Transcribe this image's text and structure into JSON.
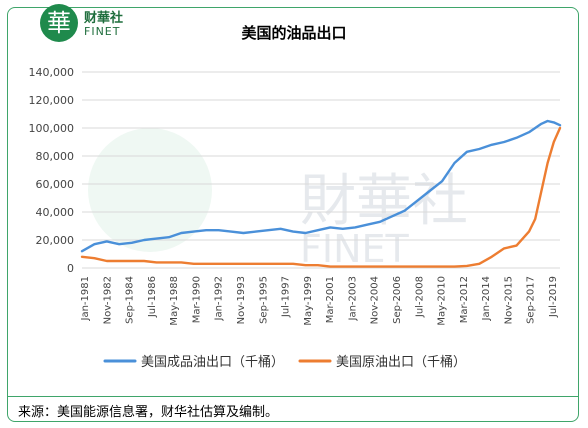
{
  "logo": {
    "seal_char": "華",
    "name_cn": "财華社",
    "name_en": "FINET"
  },
  "watermark": {
    "text_cn": "財華社",
    "text_en": "FINET"
  },
  "source_note": "来源：美国能源信息署，财华社估算及编制。",
  "colors": {
    "refined": "#4a90d9",
    "crude": "#ed7d31",
    "frame": "#3fa56a"
  },
  "chart_data": {
    "type": "line",
    "title": "美国的油品出口",
    "xlabel": "",
    "ylabel": "",
    "ylim": [
      0,
      140000
    ],
    "yticks": [
      "0",
      "20,000",
      "40,000",
      "60,000",
      "80,000",
      "100,000",
      "120,000",
      "140,000"
    ],
    "xticks": [
      "Jan-1981",
      "Nov-1982",
      "Sep-1984",
      "Jul-1986",
      "May-1988",
      "Mar-1990",
      "Jan-1992",
      "Nov-1993",
      "Sep-1995",
      "Jul-1997",
      "May-1999",
      "Mar-2001",
      "Jan-2003",
      "Nov-2004",
      "Sep-2006",
      "Jul-2008",
      "May-2010",
      "Mar-2012",
      "Jan-2014",
      "Nov-2015",
      "Sep-2017",
      "Jul-2019"
    ],
    "grid": true,
    "legend_position": "bottom",
    "x": [
      1981.0,
      1982.0,
      1983.0,
      1984.0,
      1985.0,
      1986.0,
      1987.0,
      1988.0,
      1989.0,
      1990.0,
      1991.0,
      1992.0,
      1993.0,
      1994.0,
      1995.0,
      1996.0,
      1997.0,
      1998.0,
      1999.0,
      2000.0,
      2001.0,
      2002.0,
      2003.0,
      2004.0,
      2005.0,
      2006.0,
      2007.0,
      2008.0,
      2009.0,
      2010.0,
      2011.0,
      2012.0,
      2013.0,
      2014.0,
      2015.0,
      2016.0,
      2017.0,
      2017.5,
      2018.0,
      2018.5,
      2019.0,
      2019.5
    ],
    "series": [
      {
        "name": "美国成品油出口（千桶）",
        "values": [
          12000,
          17000,
          19000,
          17000,
          18000,
          20000,
          21000,
          22000,
          25000,
          26000,
          27000,
          27000,
          26000,
          25000,
          26000,
          27000,
          28000,
          26000,
          25000,
          27000,
          29000,
          28000,
          29000,
          31000,
          33000,
          37000,
          41000,
          48000,
          55000,
          62000,
          75000,
          83000,
          85000,
          88000,
          90000,
          93000,
          97000,
          100000,
          103000,
          105000,
          104000,
          102000
        ]
      },
      {
        "name": "美国原油出口（千桶）",
        "values": [
          8000,
          7000,
          5000,
          5000,
          5000,
          5000,
          4000,
          4000,
          4000,
          3000,
          3000,
          3000,
          3000,
          3000,
          3000,
          3000,
          3000,
          3000,
          2000,
          2000,
          1000,
          1000,
          1000,
          1000,
          1000,
          1000,
          1000,
          1000,
          1000,
          1000,
          1000,
          1500,
          3000,
          8000,
          14000,
          16000,
          26000,
          35000,
          55000,
          75000,
          90000,
          100000
        ]
      }
    ]
  }
}
